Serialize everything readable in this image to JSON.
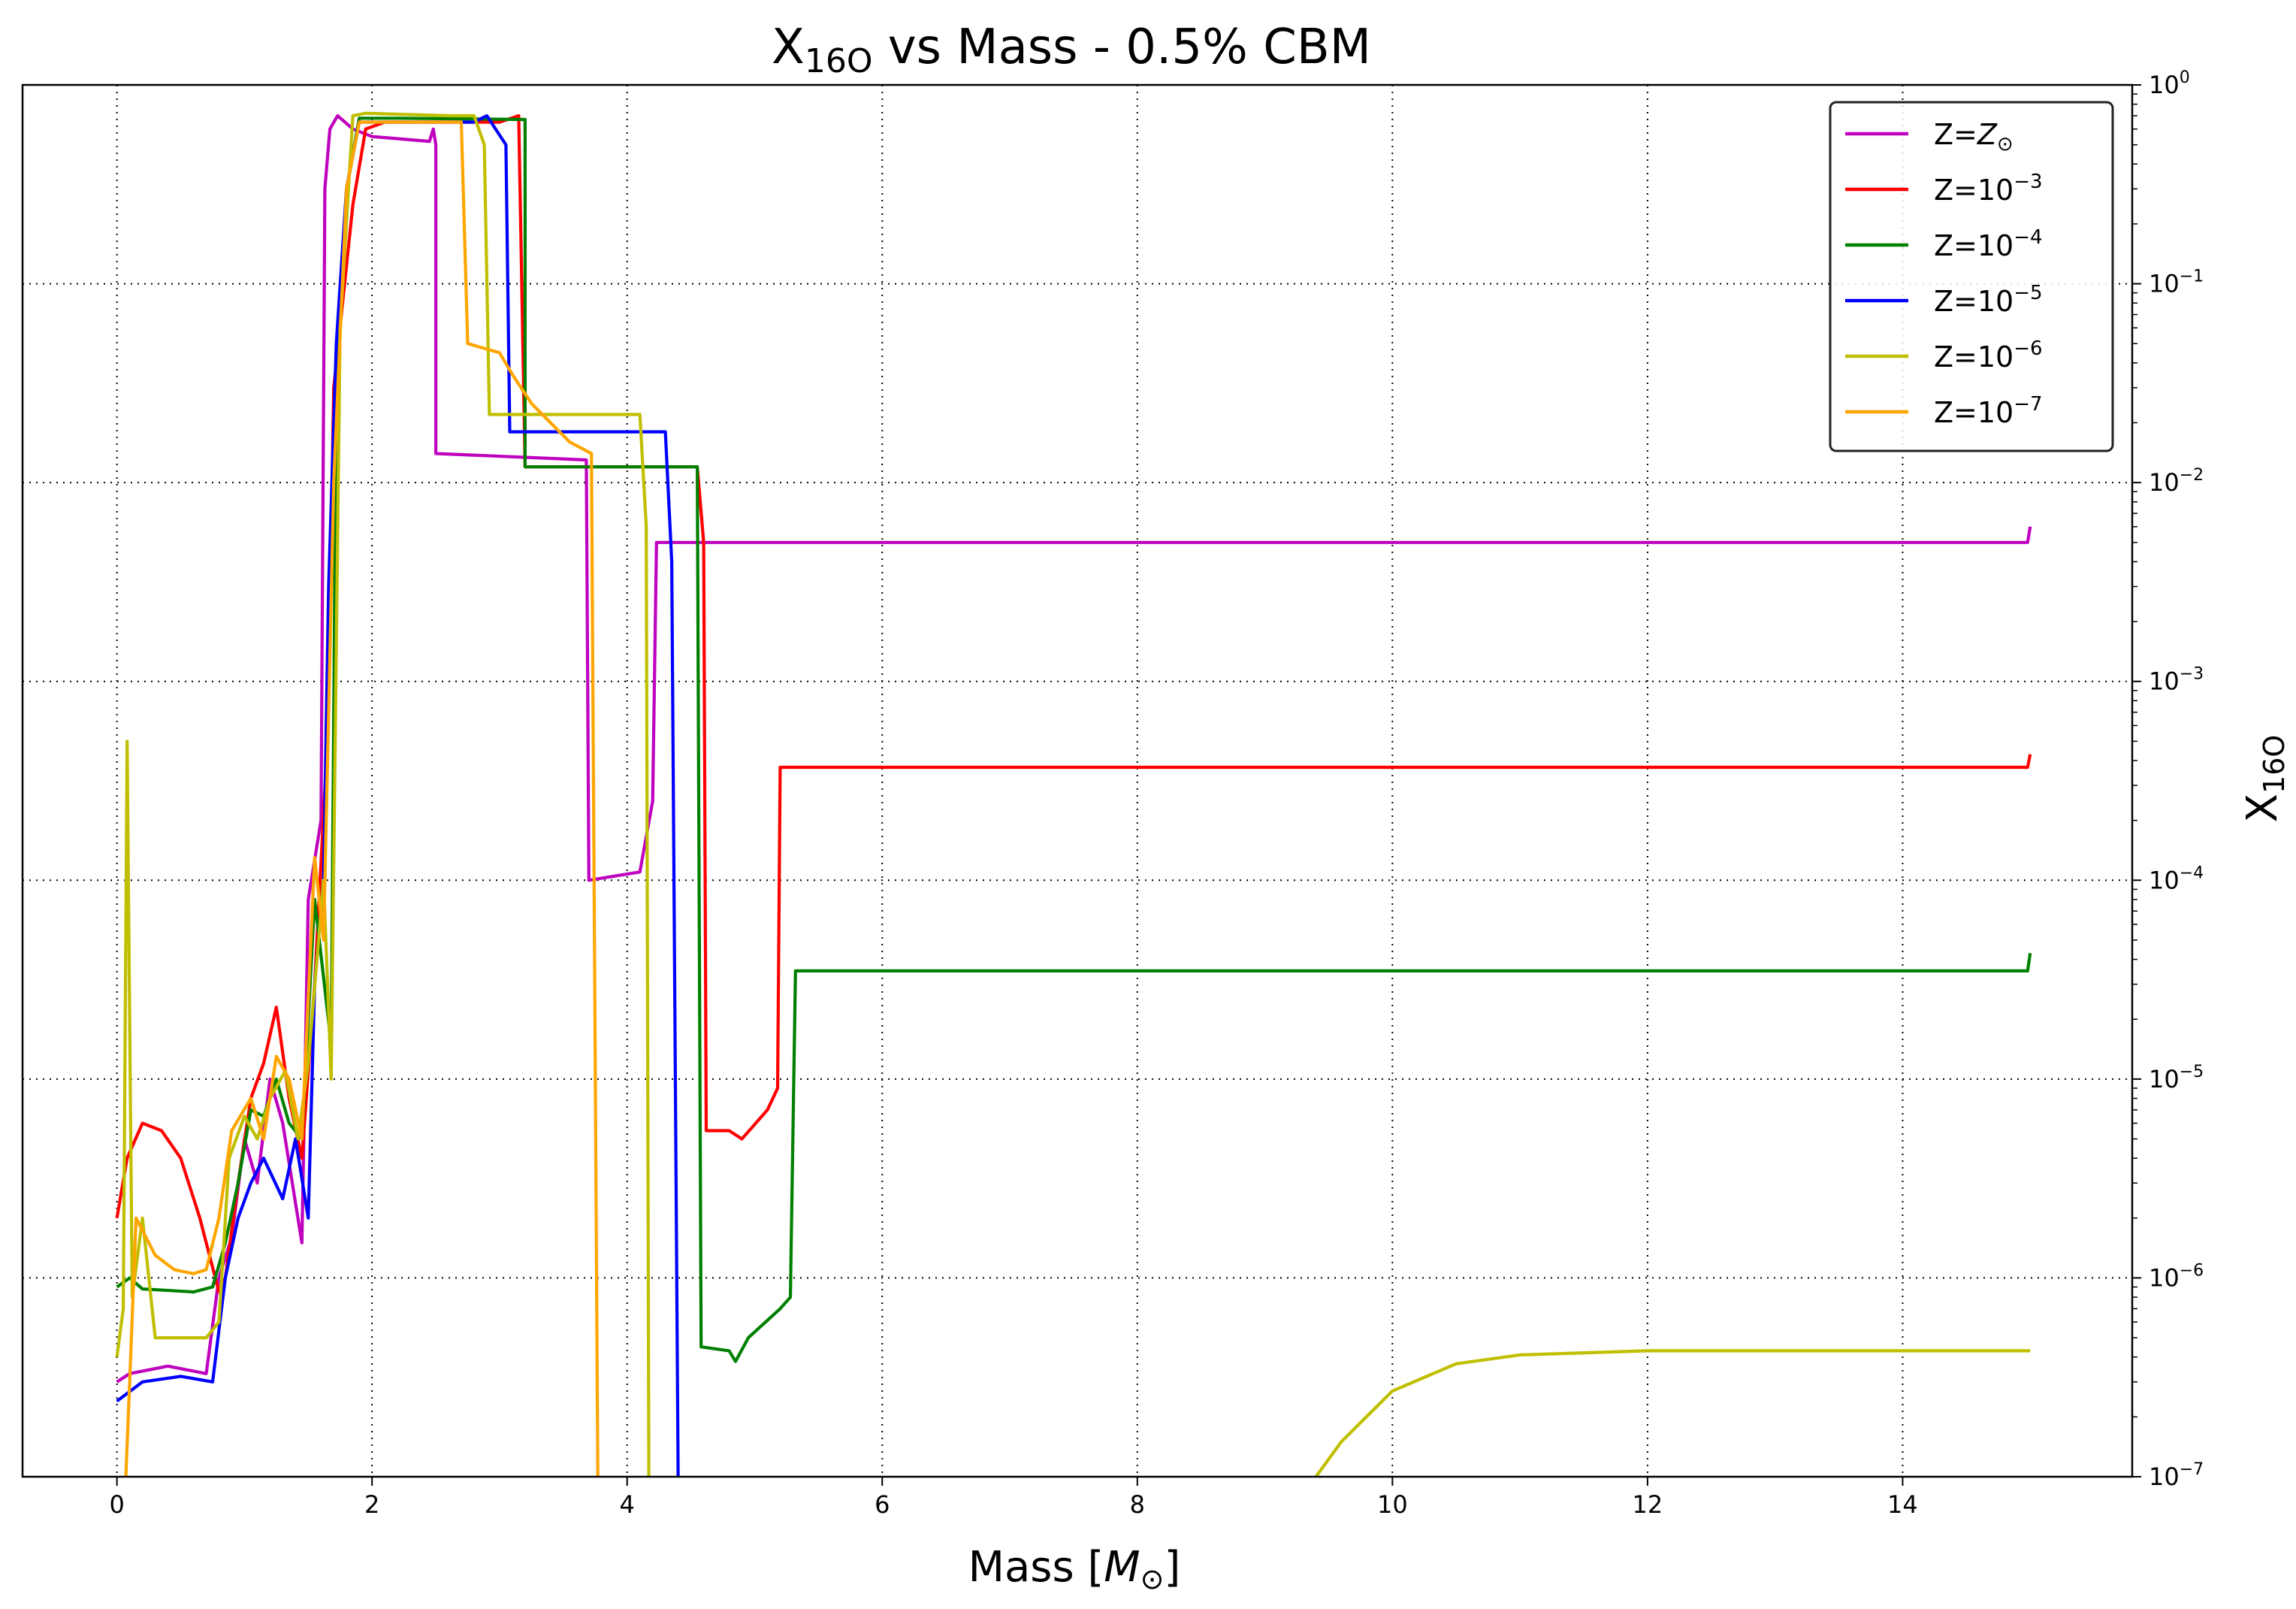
{
  "chart_data": {
    "type": "line",
    "title_main": "X",
    "title_sub": "16O",
    "title_rest": " vs Mass - 0.5% CBM",
    "xlabel_main": "Mass [",
    "xlabel_sym": "M",
    "xlabel_sub": "⊙",
    "xlabel_end": "]",
    "ylabel_main": "X",
    "ylabel_sub": "16O",
    "xlim": [
      -0.74,
      15.8
    ],
    "ylim": [
      1e-07,
      1
    ],
    "y_scale": "log",
    "y_axis_side": "right",
    "grid": true,
    "legend_position": "top-right",
    "x_ticks": [
      {
        "value": 0,
        "label": "0"
      },
      {
        "value": 2,
        "label": "2"
      },
      {
        "value": 4,
        "label": "4"
      },
      {
        "value": 6,
        "label": "6"
      },
      {
        "value": 8,
        "label": "8"
      },
      {
        "value": 10,
        "label": "10"
      },
      {
        "value": 12,
        "label": "12"
      },
      {
        "value": 14,
        "label": "14"
      }
    ],
    "y_ticks": [
      {
        "value": 1,
        "base": "10",
        "exp": "0",
        "label": "10^0"
      },
      {
        "value": 0.1,
        "base": "10",
        "exp": "−1",
        "label": "10^−1"
      },
      {
        "value": 0.01,
        "base": "10",
        "exp": "−2",
        "label": "10^−2"
      },
      {
        "value": 0.001,
        "base": "10",
        "exp": "−3",
        "label": "10^−3"
      },
      {
        "value": 0.0001,
        "base": "10",
        "exp": "−4",
        "label": "10^−4"
      },
      {
        "value": 1e-05,
        "base": "10",
        "exp": "−5",
        "label": "10^−5"
      },
      {
        "value": 1e-06,
        "base": "10",
        "exp": "−6",
        "label": "10^−6"
      },
      {
        "value": 1e-07,
        "base": "10",
        "exp": "−7",
        "label": "10^−7"
      }
    ],
    "series": [
      {
        "name": "Z=Z⊙",
        "legend_main": "Z=",
        "legend_sym": "Z",
        "legend_sub": "⊙",
        "legend_exp": "",
        "color": "#bf00bf",
        "points": [
          [
            0,
            3e-07
          ],
          [
            0.1,
            3.3e-07
          ],
          [
            0.4,
            3.6e-07
          ],
          [
            0.7,
            3.3e-07
          ],
          [
            0.8,
            1e-06
          ],
          [
            0.9,
            1.6e-06
          ],
          [
            1.0,
            5e-06
          ],
          [
            1.1,
            3e-06
          ],
          [
            1.2,
            1e-05
          ],
          [
            1.3,
            6e-06
          ],
          [
            1.45,
            1.5e-06
          ],
          [
            1.5,
            8e-05
          ],
          [
            1.6,
            0.0002
          ],
          [
            1.63,
            0.3
          ],
          [
            1.67,
            0.6
          ],
          [
            1.73,
            0.7
          ],
          [
            1.85,
            0.6
          ],
          [
            2.0,
            0.55
          ],
          [
            2.45,
            0.52
          ],
          [
            2.48,
            0.6
          ],
          [
            2.5,
            0.5
          ],
          [
            2.5,
            0.014
          ],
          [
            3.68,
            0.013
          ],
          [
            3.7,
            0.0001
          ],
          [
            4.1,
            0.00011
          ],
          [
            4.2,
            0.00025
          ],
          [
            4.23,
            0.005
          ],
          [
            14.98,
            0.005
          ],
          [
            15.0,
            0.006
          ]
        ]
      },
      {
        "name": "Z=10^-3",
        "legend_main": "Z=10",
        "legend_sym": "",
        "legend_sub": "",
        "legend_exp": "−3",
        "color": "#ff0000",
        "points": [
          [
            0,
            2e-06
          ],
          [
            0.08,
            4e-06
          ],
          [
            0.2,
            6e-06
          ],
          [
            0.35,
            5.5e-06
          ],
          [
            0.5,
            4e-06
          ],
          [
            0.65,
            2e-06
          ],
          [
            0.8,
            8.5e-07
          ],
          [
            0.85,
            1e-06
          ],
          [
            0.95,
            3e-06
          ],
          [
            1.05,
            8e-06
          ],
          [
            1.15,
            1.2e-05
          ],
          [
            1.25,
            2.3e-05
          ],
          [
            1.35,
            8e-06
          ],
          [
            1.45,
            4e-06
          ],
          [
            1.55,
            3e-05
          ],
          [
            1.65,
            0.0005
          ],
          [
            1.7,
            0.03
          ],
          [
            1.85,
            0.25
          ],
          [
            1.95,
            0.6
          ],
          [
            2.1,
            0.65
          ],
          [
            3.0,
            0.65
          ],
          [
            3.15,
            0.7
          ],
          [
            3.2,
            0.012
          ],
          [
            4.55,
            0.012
          ],
          [
            4.6,
            0.005
          ],
          [
            4.62,
            5.5e-06
          ],
          [
            4.8,
            5.5e-06
          ],
          [
            4.9,
            5e-06
          ],
          [
            5.1,
            7e-06
          ],
          [
            5.18,
            9e-06
          ],
          [
            5.2,
            0.00037
          ],
          [
            14.98,
            0.00037
          ],
          [
            15.0,
            0.00043
          ]
        ]
      },
      {
        "name": "Z=10^-4",
        "legend_main": "Z=10",
        "legend_sym": "",
        "legend_sub": "",
        "legend_exp": "−4",
        "color": "#008000",
        "points": [
          [
            0,
            9e-07
          ],
          [
            0.1,
            1e-06
          ],
          [
            0.2,
            8.8e-07
          ],
          [
            0.6,
            8.5e-07
          ],
          [
            0.75,
            9e-07
          ],
          [
            0.85,
            1.5e-06
          ],
          [
            0.95,
            3e-06
          ],
          [
            1.05,
            7e-06
          ],
          [
            1.15,
            6.5e-06
          ],
          [
            1.25,
            1e-05
          ],
          [
            1.35,
            6e-06
          ],
          [
            1.45,
            5e-06
          ],
          [
            1.55,
            8e-05
          ],
          [
            1.68,
            1.5e-05
          ],
          [
            1.72,
            0.03
          ],
          [
            1.8,
            0.3
          ],
          [
            1.9,
            0.68
          ],
          [
            2.2,
            0.68
          ],
          [
            3.2,
            0.67
          ],
          [
            3.2,
            0.012
          ],
          [
            4.55,
            0.012
          ],
          [
            4.58,
            4.5e-07
          ],
          [
            4.8,
            4.3e-07
          ],
          [
            4.85,
            3.8e-07
          ],
          [
            4.95,
            5e-07
          ],
          [
            5.2,
            7e-07
          ],
          [
            5.28,
            8e-07
          ],
          [
            5.32,
            3.5e-05
          ],
          [
            14.98,
            3.5e-05
          ],
          [
            15.0,
            4.3e-05
          ]
        ]
      },
      {
        "name": "Z=10^-5",
        "legend_main": "Z=10",
        "legend_sym": "",
        "legend_sub": "",
        "legend_exp": "−5",
        "color": "#0000ff",
        "points": [
          [
            0,
            2.4e-07
          ],
          [
            0.2,
            3e-07
          ],
          [
            0.5,
            3.2e-07
          ],
          [
            0.75,
            3e-07
          ],
          [
            0.85,
            1e-06
          ],
          [
            0.95,
            2e-06
          ],
          [
            1.05,
            3e-06
          ],
          [
            1.15,
            4e-06
          ],
          [
            1.3,
            2.5e-06
          ],
          [
            1.4,
            5e-06
          ],
          [
            1.5,
            2e-06
          ],
          [
            1.55,
            3e-05
          ],
          [
            1.62,
            0.0001
          ],
          [
            1.66,
            0.003
          ],
          [
            1.72,
            0.05
          ],
          [
            1.8,
            0.3
          ],
          [
            1.9,
            0.65
          ],
          [
            2.8,
            0.65
          ],
          [
            2.9,
            0.7
          ],
          [
            3.05,
            0.5
          ],
          [
            3.08,
            0.018
          ],
          [
            4.3,
            0.018
          ],
          [
            4.35,
            0.004
          ],
          [
            4.4,
            1e-07
          ]
        ]
      },
      {
        "name": "Z=10^-6",
        "legend_main": "Z=10",
        "legend_sym": "",
        "legend_sub": "",
        "legend_exp": "−6",
        "color": "#bfbf00",
        "points": [
          [
            0,
            4e-07
          ],
          [
            0.05,
            7e-07
          ],
          [
            0.08,
            0.0005
          ],
          [
            0.12,
            8e-07
          ],
          [
            0.2,
            2e-06
          ],
          [
            0.3,
            5e-07
          ],
          [
            0.7,
            5e-07
          ],
          [
            0.8,
            6e-07
          ],
          [
            0.88,
            4e-06
          ],
          [
            1.0,
            6.5e-06
          ],
          [
            1.1,
            5e-06
          ],
          [
            1.2,
            8e-06
          ],
          [
            1.32,
            1.1e-05
          ],
          [
            1.42,
            5e-06
          ],
          [
            1.5,
            1.2e-05
          ],
          [
            1.62,
            0.0001
          ],
          [
            1.68,
            1e-05
          ],
          [
            1.75,
            0.06
          ],
          [
            1.85,
            0.7
          ],
          [
            1.95,
            0.72
          ],
          [
            2.6,
            0.7
          ],
          [
            2.8,
            0.7
          ],
          [
            2.88,
            0.5
          ],
          [
            2.92,
            0.022
          ],
          [
            4.1,
            0.022
          ],
          [
            4.15,
            0.006
          ],
          [
            4.17,
            1e-07
          ]
        ],
        "points_b": [
          [
            9.4,
            1e-07
          ],
          [
            9.6,
            1.5e-07
          ],
          [
            10.0,
            2.7e-07
          ],
          [
            10.5,
            3.7e-07
          ],
          [
            11.0,
            4.1e-07
          ],
          [
            12.0,
            4.3e-07
          ],
          [
            15.0,
            4.3e-07
          ]
        ]
      },
      {
        "name": "Z=10^-7",
        "legend_main": "Z=10",
        "legend_sym": "",
        "legend_sub": "",
        "legend_exp": "−7",
        "color": "#ffa500",
        "points": [
          [
            0.07,
            1e-07
          ],
          [
            0.1,
            3e-07
          ],
          [
            0.15,
            2e-06
          ],
          [
            0.3,
            1.3e-06
          ],
          [
            0.45,
            1.1e-06
          ],
          [
            0.6,
            1.05e-06
          ],
          [
            0.7,
            1.1e-06
          ],
          [
            0.8,
            2e-06
          ],
          [
            0.9,
            5.5e-06
          ],
          [
            1.05,
            8e-06
          ],
          [
            1.15,
            5e-06
          ],
          [
            1.25,
            1.3e-05
          ],
          [
            1.35,
            1e-05
          ],
          [
            1.45,
            5e-06
          ],
          [
            1.55,
            0.00013
          ],
          [
            1.62,
            5e-05
          ],
          [
            1.7,
            0.01
          ],
          [
            1.8,
            0.3
          ],
          [
            1.9,
            0.65
          ],
          [
            2.7,
            0.65
          ],
          [
            2.75,
            0.05
          ],
          [
            3.0,
            0.045
          ],
          [
            3.1,
            0.035
          ],
          [
            3.25,
            0.025
          ],
          [
            3.4,
            0.02
          ],
          [
            3.55,
            0.016
          ],
          [
            3.72,
            0.014
          ],
          [
            3.77,
            1e-07
          ]
        ]
      }
    ]
  }
}
